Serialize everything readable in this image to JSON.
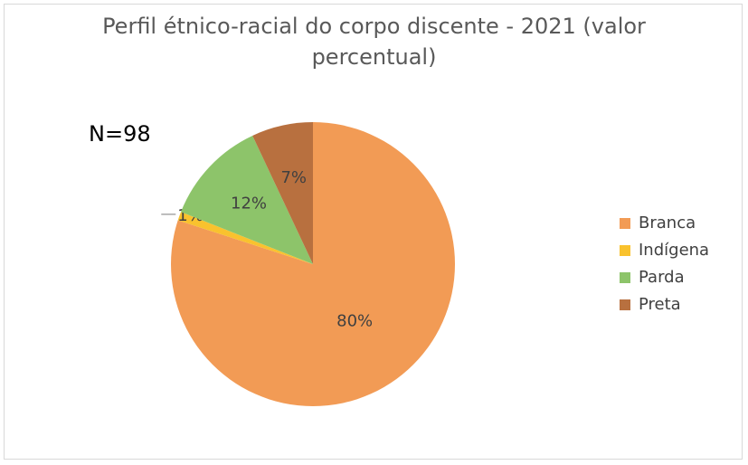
{
  "chart_data": {
    "type": "pie",
    "title": "Perfil étnico-racial do corpo discente - 2021 (valor percentual)",
    "annotation": "N=98",
    "categories": [
      "Branca",
      "Indígena",
      "Parda",
      "Preta"
    ],
    "values": [
      80,
      1,
      12,
      7
    ],
    "value_labels": [
      "80%",
      "1%",
      "12%",
      "7%"
    ],
    "colors": [
      "#f29b55",
      "#f9c22e",
      "#8dc46a",
      "#b8703f"
    ],
    "legend": "right"
  }
}
